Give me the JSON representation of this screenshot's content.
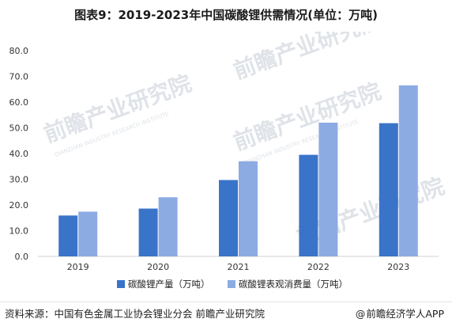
{
  "title": "图表9：2019-2023年中国碳酸锂供需情况(单位：万吨)",
  "source": "资料来源：中国有色金属工业协会锂业分会 前瞻产业研究院",
  "brand": "前瞻经济学人APP",
  "brand_icon": "at-icon",
  "watermark": {
    "text": "前瞻产业研究院",
    "sub": "QIANZHAN INDUSTRY RESEARCH INSTITUTE"
  },
  "colors": {
    "production": "#3a74c9",
    "consumption": "#8dabe3",
    "grid": "#e6e6e6"
  },
  "chart_data": {
    "type": "bar",
    "title": "",
    "xlabel": "",
    "ylabel": "",
    "categories": [
      "2019",
      "2020",
      "2021",
      "2022",
      "2023"
    ],
    "ylim": [
      0,
      80
    ],
    "yticks": [
      "0.0",
      "10.0",
      "20.0",
      "30.0",
      "40.0",
      "50.0",
      "60.0",
      "70.0",
      "80.0"
    ],
    "grid": false,
    "legend_position": "bottom",
    "series": [
      {
        "name": "碳酸锂产量（万吨）",
        "values": [
          15.9,
          18.6,
          29.7,
          39.5,
          51.8
        ],
        "color": "#3a74c9"
      },
      {
        "name": "碳酸锂表观消费量（万吨）",
        "values": [
          17.4,
          23.0,
          37.0,
          52.0,
          66.5
        ],
        "color": "#8dabe3"
      }
    ]
  }
}
